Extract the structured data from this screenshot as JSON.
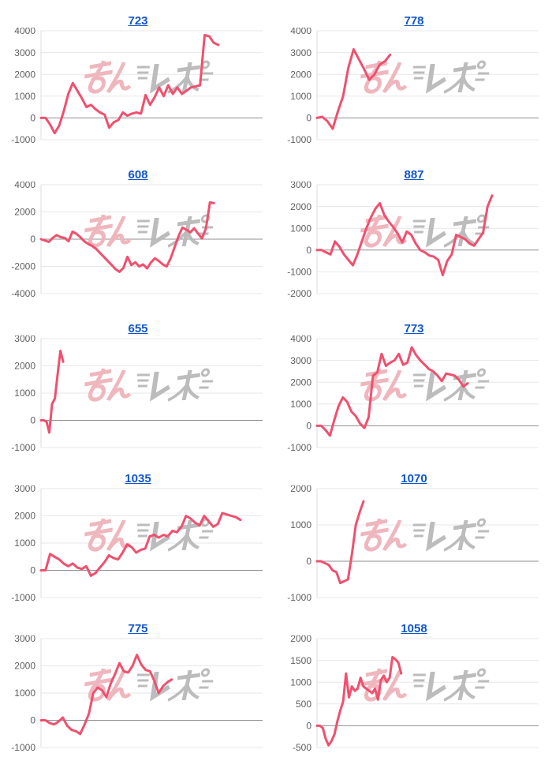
{
  "style": {
    "background": "#ffffff",
    "line_color": "#f0506e",
    "title_link_color": "#1155cc",
    "grid_color": "#e7e7e7",
    "zero_line_color": "#8f8f8f",
    "axis_line_color": "#dcdcdc",
    "tick_label_color": "#5f5f5f",
    "watermark_pink": "#efb3bb",
    "watermark_gray": "#b9b9b9"
  },
  "watermark": {
    "pink_text": "みん",
    "gray_text": "レポ"
  },
  "chart_data": [
    {
      "type": "line",
      "title": "723",
      "ylim": [
        -1000,
        4000
      ],
      "yticks": [
        4000,
        3000,
        2000,
        1000,
        0,
        -1000
      ],
      "grid": true,
      "legend": "none",
      "end_fraction": 0.8,
      "values": [
        0,
        0,
        -300,
        -700,
        -350,
        300,
        1100,
        1600,
        1250,
        900,
        500,
        600,
        400,
        250,
        150,
        -450,
        -200,
        -100,
        250,
        100,
        200,
        250,
        200,
        1050,
        600,
        950,
        1400,
        1000,
        1500,
        1100,
        1400,
        1100,
        1250,
        1400,
        1450,
        1500,
        3800,
        3750,
        3450,
        3350
      ]
    },
    {
      "type": "line",
      "title": "778",
      "ylim": [
        -1000,
        4000
      ],
      "yticks": [
        4000,
        3000,
        2000,
        1000,
        0,
        -1000
      ],
      "grid": true,
      "legend": "none",
      "end_fraction": 0.33,
      "values": [
        0,
        50,
        -150,
        -500,
        300,
        1000,
        2300,
        3150,
        2700,
        2250,
        1750,
        2000,
        2450,
        2600,
        2900
      ]
    },
    {
      "type": "line",
      "title": "608",
      "ylim": [
        -4000,
        4000
      ],
      "yticks": [
        4000,
        2000,
        0,
        -2000,
        -4000
      ],
      "grid": true,
      "legend": "none",
      "end_fraction": 0.78,
      "values": [
        0,
        -100,
        -200,
        100,
        300,
        150,
        100,
        -150,
        550,
        400,
        150,
        -150,
        -350,
        -500,
        -700,
        -1000,
        -1300,
        -1600,
        -1900,
        -2200,
        -2400,
        -2100,
        -1300,
        -1900,
        -1700,
        -2000,
        -1850,
        -2150,
        -1700,
        -1400,
        -1600,
        -1850,
        -2000,
        -1400,
        -600,
        200,
        850,
        700,
        500,
        800,
        400,
        50,
        800,
        2700,
        2650
      ]
    },
    {
      "type": "line",
      "title": "887",
      "ylim": [
        -2000,
        3000
      ],
      "yticks": [
        3000,
        2000,
        1000,
        0,
        -1000,
        -2000
      ],
      "grid": true,
      "legend": "none",
      "end_fraction": 0.79,
      "values": [
        0,
        0,
        -100,
        -200,
        400,
        150,
        -200,
        -450,
        -700,
        -200,
        400,
        1000,
        1500,
        1900,
        2150,
        1600,
        1300,
        1050,
        750,
        350,
        850,
        700,
        300,
        0,
        -100,
        -250,
        -300,
        -450,
        -1150,
        -500,
        -200,
        700,
        600,
        500,
        300,
        200,
        500,
        800,
        2000,
        2500
      ]
    },
    {
      "type": "line",
      "title": "655",
      "ylim": [
        -1000,
        3000
      ],
      "yticks": [
        3000,
        2000,
        1000,
        0,
        -1000
      ],
      "grid": true,
      "legend": "none",
      "end_fraction": 0.1,
      "values": [
        0,
        0,
        -50,
        -450,
        600,
        800,
        1700,
        2550,
        2150
      ]
    },
    {
      "type": "line",
      "title": "773",
      "ylim": [
        -1000,
        4000
      ],
      "yticks": [
        4000,
        3000,
        2000,
        1000,
        0,
        -1000
      ],
      "grid": true,
      "legend": "none",
      "end_fraction": 0.68,
      "values": [
        0,
        0,
        -200,
        -450,
        250,
        900,
        1300,
        1100,
        650,
        450,
        100,
        -100,
        400,
        2300,
        2450,
        3300,
        2750,
        2900,
        3000,
        3300,
        2800,
        2900,
        3600,
        3250,
        3000,
        2800,
        2600,
        2500,
        2300,
        2050,
        2400,
        2350,
        2300,
        2100,
        1800,
        1950
      ]
    },
    {
      "type": "line",
      "title": "1035",
      "ylim": [
        -1000,
        3000
      ],
      "yticks": [
        3000,
        2000,
        1000,
        0,
        -1000
      ],
      "grid": true,
      "legend": "none",
      "end_fraction": 0.9,
      "values": [
        0,
        0,
        600,
        500,
        400,
        250,
        150,
        250,
        100,
        50,
        150,
        -200,
        -100,
        100,
        300,
        550,
        450,
        400,
        650,
        950,
        850,
        650,
        750,
        800,
        1250,
        1300,
        1200,
        1300,
        1250,
        1450,
        1400,
        1600,
        2000,
        1900,
        1750,
        1650,
        2000,
        1800,
        1600,
        1700,
        2100,
        2050,
        2000,
        1950,
        1850
      ]
    },
    {
      "type": "line",
      "title": "1070",
      "ylim": [
        -1000,
        2000
      ],
      "yticks": [
        2000,
        1000,
        0,
        -1000
      ],
      "grid": true,
      "legend": "none",
      "end_fraction": 0.21,
      "values": [
        0,
        0,
        -50,
        -100,
        -250,
        -300,
        -600,
        -550,
        -500,
        200,
        1000,
        1350,
        1650
      ]
    },
    {
      "type": "line",
      "title": "775",
      "ylim": [
        -1000,
        3000
      ],
      "yticks": [
        3000,
        2000,
        1000,
        0,
        -1000
      ],
      "grid": true,
      "legend": "none",
      "end_fraction": 0.59,
      "values": [
        0,
        0,
        -100,
        -150,
        -50,
        100,
        -200,
        -350,
        -400,
        -500,
        -150,
        250,
        1000,
        1200,
        1100,
        850,
        1350,
        1700,
        2100,
        1800,
        1750,
        2000,
        2400,
        2050,
        1850,
        1800,
        1450,
        1000,
        1250,
        1400,
        1500
      ]
    },
    {
      "type": "line",
      "title": "1058",
      "ylim": [
        -500,
        2000
      ],
      "yticks": [
        2000,
        1500,
        1000,
        500,
        0,
        -500
      ],
      "grid": true,
      "legend": "none",
      "end_fraction": 0.38,
      "values": [
        0,
        0,
        -50,
        -300,
        -450,
        -350,
        -200,
        100,
        350,
        550,
        1200,
        650,
        900,
        800,
        850,
        1100,
        900,
        850,
        800,
        750,
        850,
        600,
        1050,
        1150,
        1000,
        1100,
        1575,
        1525,
        1450,
        1200
      ]
    }
  ]
}
